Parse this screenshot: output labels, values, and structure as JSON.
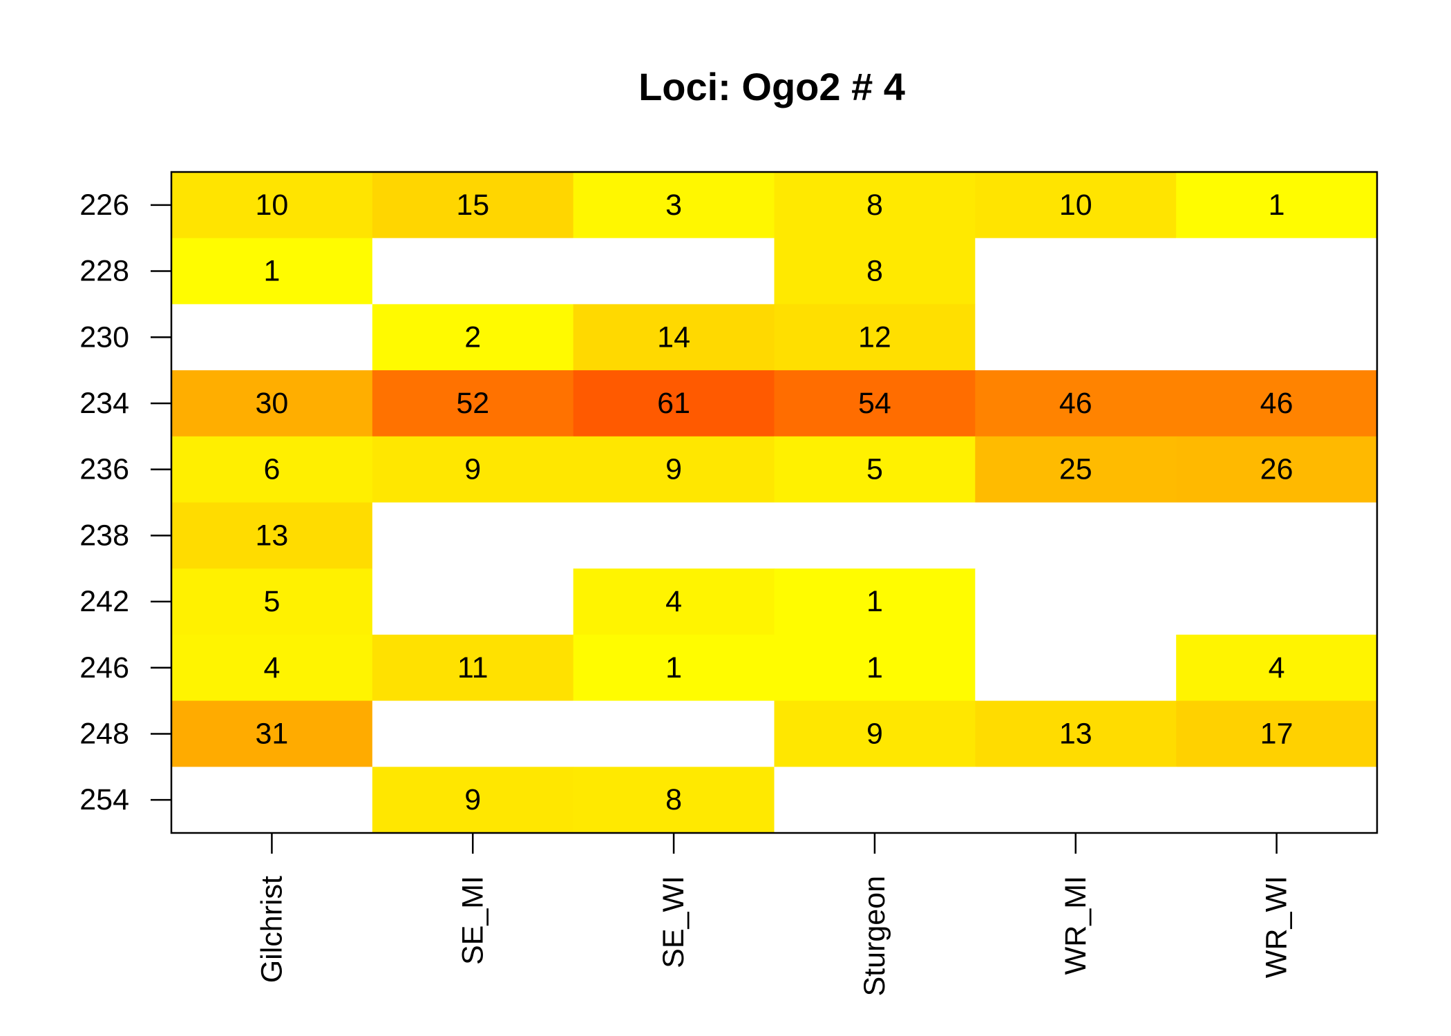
{
  "chart_data": {
    "type": "heatmap",
    "title": "Loci: Ogo2 # 4",
    "xlabel": "",
    "ylabel": "",
    "x_categories": [
      "Gilchrist",
      "SE_MI",
      "SE_WI",
      "Sturgeon",
      "WR_MI",
      "WR_WI"
    ],
    "y_categories": [
      "226",
      "228",
      "230",
      "234",
      "236",
      "238",
      "242",
      "246",
      "248",
      "254"
    ],
    "values": [
      [
        10,
        15,
        3,
        8,
        10,
        1
      ],
      [
        1,
        null,
        null,
        8,
        null,
        null
      ],
      [
        null,
        2,
        14,
        12,
        null,
        null
      ],
      [
        30,
        52,
        61,
        54,
        46,
        46
      ],
      [
        6,
        9,
        9,
        5,
        25,
        26
      ],
      [
        13,
        null,
        null,
        null,
        null,
        null
      ],
      [
        5,
        null,
        4,
        1,
        null,
        null
      ],
      [
        4,
        11,
        1,
        1,
        null,
        4
      ],
      [
        31,
        null,
        null,
        9,
        13,
        17
      ],
      [
        null,
        9,
        8,
        null,
        null,
        null
      ]
    ],
    "value_range": [
      0,
      61
    ],
    "color_scale": [
      "#FFFF00",
      "#FF5A00"
    ],
    "missing_color": "#FFFFFF",
    "grid": false,
    "legend": "none"
  }
}
